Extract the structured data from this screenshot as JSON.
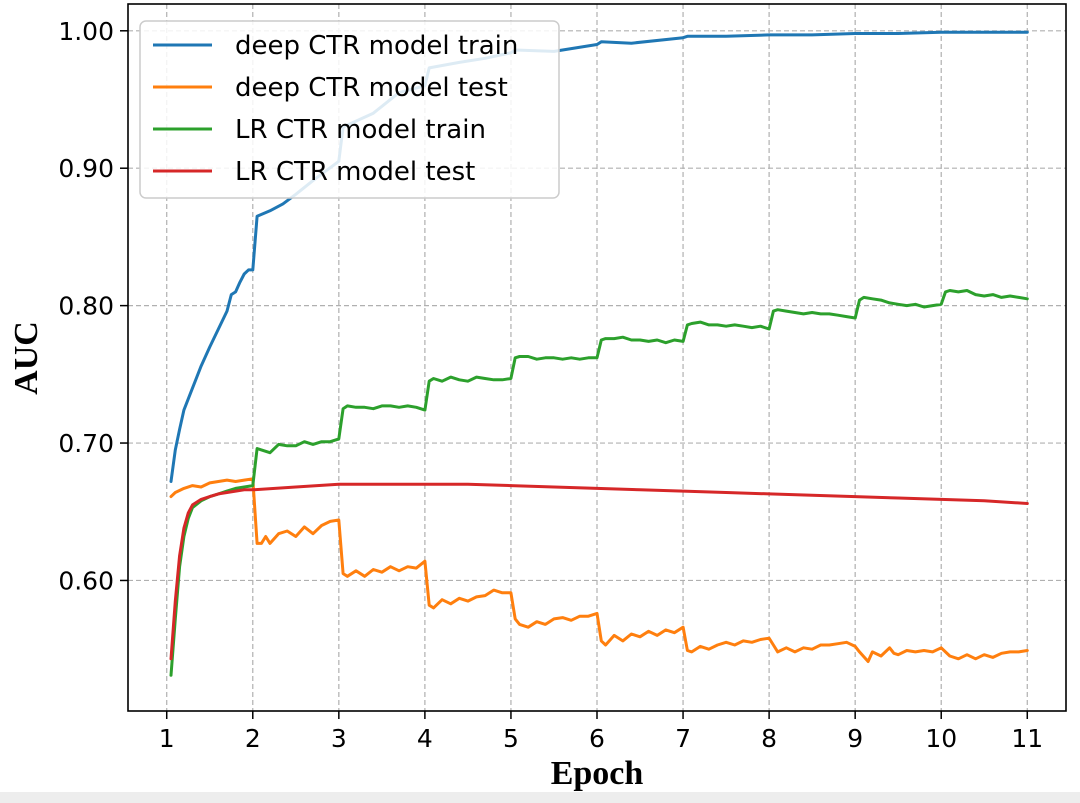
{
  "chart_data": {
    "type": "line",
    "title": "",
    "xlabel": "Epoch",
    "ylabel": "AUC",
    "xlim": [
      0.55,
      11.45
    ],
    "ylim": [
      0.505,
      1.0195
    ],
    "x_ticks": [
      1,
      2,
      3,
      4,
      5,
      6,
      7,
      8,
      9,
      10,
      11
    ],
    "x_tick_labels": [
      "1",
      "2",
      "3",
      "4",
      "5",
      "6",
      "7",
      "8",
      "9",
      "10",
      "11"
    ],
    "y_ticks": [
      0.6,
      0.7,
      0.8,
      0.9,
      1.0
    ],
    "y_tick_labels": [
      "0.60",
      "0.70",
      "0.80",
      "0.90",
      "1.00"
    ],
    "grid": true,
    "legend_position": "top-left",
    "series": [
      {
        "name": "deep CTR model train",
        "color": "#1f77b4",
        "points": [
          [
            1.05,
            0.672
          ],
          [
            1.1,
            0.695
          ],
          [
            1.15,
            0.71
          ],
          [
            1.2,
            0.724
          ],
          [
            1.3,
            0.74
          ],
          [
            1.4,
            0.756
          ],
          [
            1.5,
            0.77
          ],
          [
            1.6,
            0.783
          ],
          [
            1.7,
            0.796
          ],
          [
            1.75,
            0.808
          ],
          [
            1.8,
            0.81
          ],
          [
            1.85,
            0.817
          ],
          [
            1.9,
            0.823
          ],
          [
            1.95,
            0.826
          ],
          [
            2.0,
            0.826
          ],
          [
            2.05,
            0.865
          ],
          [
            2.2,
            0.869
          ],
          [
            2.35,
            0.874
          ],
          [
            2.5,
            0.881
          ],
          [
            2.7,
            0.891
          ],
          [
            3.0,
            0.905
          ],
          [
            3.05,
            0.93
          ],
          [
            3.4,
            0.94
          ],
          [
            3.7,
            0.955
          ],
          [
            4.0,
            0.96
          ],
          [
            4.05,
            0.973
          ],
          [
            4.4,
            0.977
          ],
          [
            4.7,
            0.98
          ],
          [
            5.0,
            0.984
          ],
          [
            5.05,
            0.986
          ],
          [
            5.5,
            0.985
          ],
          [
            6.0,
            0.99
          ],
          [
            6.05,
            0.992
          ],
          [
            6.4,
            0.991
          ],
          [
            7.0,
            0.995
          ],
          [
            7.05,
            0.996
          ],
          [
            7.5,
            0.996
          ],
          [
            8.0,
            0.997
          ],
          [
            8.5,
            0.997
          ],
          [
            9.0,
            0.998
          ],
          [
            9.5,
            0.998
          ],
          [
            10.0,
            0.999
          ],
          [
            10.5,
            0.999
          ],
          [
            11.0,
            0.999
          ]
        ]
      },
      {
        "name": "deep CTR model test",
        "color": "#ff7f0e",
        "points": [
          [
            1.05,
            0.661
          ],
          [
            1.1,
            0.664
          ],
          [
            1.2,
            0.667
          ],
          [
            1.3,
            0.669
          ],
          [
            1.4,
            0.668
          ],
          [
            1.5,
            0.671
          ],
          [
            1.6,
            0.672
          ],
          [
            1.7,
            0.673
          ],
          [
            1.8,
            0.672
          ],
          [
            1.9,
            0.673
          ],
          [
            2.0,
            0.674
          ],
          [
            2.05,
            0.627
          ],
          [
            2.1,
            0.627
          ],
          [
            2.15,
            0.632
          ],
          [
            2.2,
            0.627
          ],
          [
            2.3,
            0.634
          ],
          [
            2.4,
            0.636
          ],
          [
            2.5,
            0.632
          ],
          [
            2.6,
            0.639
          ],
          [
            2.7,
            0.634
          ],
          [
            2.8,
            0.64
          ],
          [
            2.9,
            0.643
          ],
          [
            3.0,
            0.644
          ],
          [
            3.05,
            0.605
          ],
          [
            3.1,
            0.603
          ],
          [
            3.2,
            0.607
          ],
          [
            3.3,
            0.603
          ],
          [
            3.4,
            0.608
          ],
          [
            3.5,
            0.606
          ],
          [
            3.6,
            0.61
          ],
          [
            3.7,
            0.607
          ],
          [
            3.8,
            0.61
          ],
          [
            3.9,
            0.609
          ],
          [
            4.0,
            0.614
          ],
          [
            4.05,
            0.582
          ],
          [
            4.1,
            0.58
          ],
          [
            4.2,
            0.586
          ],
          [
            4.3,
            0.583
          ],
          [
            4.4,
            0.587
          ],
          [
            4.5,
            0.585
          ],
          [
            4.6,
            0.588
          ],
          [
            4.7,
            0.589
          ],
          [
            4.8,
            0.593
          ],
          [
            4.9,
            0.591
          ],
          [
            5.0,
            0.591
          ],
          [
            5.05,
            0.572
          ],
          [
            5.1,
            0.568
          ],
          [
            5.2,
            0.566
          ],
          [
            5.3,
            0.57
          ],
          [
            5.4,
            0.568
          ],
          [
            5.5,
            0.572
          ],
          [
            5.6,
            0.573
          ],
          [
            5.7,
            0.571
          ],
          [
            5.8,
            0.574
          ],
          [
            5.9,
            0.574
          ],
          [
            6.0,
            0.576
          ],
          [
            6.05,
            0.556
          ],
          [
            6.1,
            0.553
          ],
          [
            6.2,
            0.56
          ],
          [
            6.3,
            0.556
          ],
          [
            6.4,
            0.561
          ],
          [
            6.5,
            0.559
          ],
          [
            6.6,
            0.563
          ],
          [
            6.7,
            0.56
          ],
          [
            6.8,
            0.564
          ],
          [
            6.9,
            0.562
          ],
          [
            7.0,
            0.566
          ],
          [
            7.05,
            0.549
          ],
          [
            7.1,
            0.548
          ],
          [
            7.2,
            0.552
          ],
          [
            7.3,
            0.55
          ],
          [
            7.4,
            0.553
          ],
          [
            7.5,
            0.555
          ],
          [
            7.6,
            0.553
          ],
          [
            7.7,
            0.556
          ],
          [
            7.8,
            0.555
          ],
          [
            7.9,
            0.557
          ],
          [
            8.0,
            0.558
          ],
          [
            8.05,
            0.553
          ],
          [
            8.1,
            0.548
          ],
          [
            8.2,
            0.551
          ],
          [
            8.3,
            0.548
          ],
          [
            8.4,
            0.551
          ],
          [
            8.5,
            0.55
          ],
          [
            8.6,
            0.553
          ],
          [
            8.7,
            0.553
          ],
          [
            8.8,
            0.554
          ],
          [
            8.9,
            0.555
          ],
          [
            9.0,
            0.552
          ],
          [
            9.05,
            0.548
          ],
          [
            9.15,
            0.541
          ],
          [
            9.2,
            0.548
          ],
          [
            9.3,
            0.545
          ],
          [
            9.4,
            0.551
          ],
          [
            9.45,
            0.547
          ],
          [
            9.5,
            0.546
          ],
          [
            9.6,
            0.549
          ],
          [
            9.7,
            0.548
          ],
          [
            9.8,
            0.549
          ],
          [
            9.9,
            0.548
          ],
          [
            10.0,
            0.551
          ],
          [
            10.1,
            0.545
          ],
          [
            10.2,
            0.543
          ],
          [
            10.3,
            0.546
          ],
          [
            10.4,
            0.543
          ],
          [
            10.5,
            0.546
          ],
          [
            10.6,
            0.544
          ],
          [
            10.7,
            0.547
          ],
          [
            10.8,
            0.548
          ],
          [
            10.9,
            0.548
          ],
          [
            11.0,
            0.549
          ]
        ]
      },
      {
        "name": "LR CTR model train",
        "color": "#2ca02c",
        "points": [
          [
            1.05,
            0.531
          ],
          [
            1.1,
            0.572
          ],
          [
            1.15,
            0.61
          ],
          [
            1.2,
            0.632
          ],
          [
            1.25,
            0.645
          ],
          [
            1.3,
            0.653
          ],
          [
            1.4,
            0.658
          ],
          [
            1.5,
            0.661
          ],
          [
            1.6,
            0.663
          ],
          [
            1.7,
            0.665
          ],
          [
            1.8,
            0.667
          ],
          [
            1.9,
            0.668
          ],
          [
            2.0,
            0.669
          ],
          [
            2.05,
            0.696
          ],
          [
            2.1,
            0.695
          ],
          [
            2.2,
            0.693
          ],
          [
            2.3,
            0.699
          ],
          [
            2.4,
            0.698
          ],
          [
            2.5,
            0.698
          ],
          [
            2.6,
            0.701
          ],
          [
            2.7,
            0.699
          ],
          [
            2.8,
            0.701
          ],
          [
            2.9,
            0.701
          ],
          [
            3.0,
            0.703
          ],
          [
            3.05,
            0.725
          ],
          [
            3.1,
            0.727
          ],
          [
            3.2,
            0.726
          ],
          [
            3.3,
            0.726
          ],
          [
            3.4,
            0.725
          ],
          [
            3.5,
            0.727
          ],
          [
            3.6,
            0.727
          ],
          [
            3.7,
            0.726
          ],
          [
            3.8,
            0.727
          ],
          [
            3.9,
            0.726
          ],
          [
            4.0,
            0.724
          ],
          [
            4.05,
            0.745
          ],
          [
            4.1,
            0.747
          ],
          [
            4.2,
            0.745
          ],
          [
            4.3,
            0.748
          ],
          [
            4.4,
            0.746
          ],
          [
            4.5,
            0.745
          ],
          [
            4.6,
            0.748
          ],
          [
            4.7,
            0.747
          ],
          [
            4.8,
            0.746
          ],
          [
            4.9,
            0.746
          ],
          [
            5.0,
            0.747
          ],
          [
            5.05,
            0.762
          ],
          [
            5.1,
            0.763
          ],
          [
            5.2,
            0.763
          ],
          [
            5.3,
            0.761
          ],
          [
            5.4,
            0.762
          ],
          [
            5.5,
            0.762
          ],
          [
            5.6,
            0.761
          ],
          [
            5.7,
            0.762
          ],
          [
            5.8,
            0.761
          ],
          [
            5.9,
            0.762
          ],
          [
            6.0,
            0.762
          ],
          [
            6.05,
            0.775
          ],
          [
            6.1,
            0.776
          ],
          [
            6.2,
            0.776
          ],
          [
            6.3,
            0.777
          ],
          [
            6.4,
            0.775
          ],
          [
            6.5,
            0.775
          ],
          [
            6.6,
            0.774
          ],
          [
            6.7,
            0.775
          ],
          [
            6.8,
            0.773
          ],
          [
            6.9,
            0.775
          ],
          [
            7.0,
            0.774
          ],
          [
            7.05,
            0.786
          ],
          [
            7.1,
            0.787
          ],
          [
            7.2,
            0.788
          ],
          [
            7.3,
            0.786
          ],
          [
            7.4,
            0.786
          ],
          [
            7.5,
            0.785
          ],
          [
            7.6,
            0.786
          ],
          [
            7.7,
            0.785
          ],
          [
            7.8,
            0.784
          ],
          [
            7.9,
            0.785
          ],
          [
            8.0,
            0.783
          ],
          [
            8.05,
            0.796
          ],
          [
            8.1,
            0.797
          ],
          [
            8.2,
            0.796
          ],
          [
            8.3,
            0.795
          ],
          [
            8.4,
            0.794
          ],
          [
            8.5,
            0.795
          ],
          [
            8.6,
            0.794
          ],
          [
            8.7,
            0.794
          ],
          [
            8.8,
            0.793
          ],
          [
            8.9,
            0.792
          ],
          [
            9.0,
            0.791
          ],
          [
            9.05,
            0.804
          ],
          [
            9.1,
            0.806
          ],
          [
            9.2,
            0.805
          ],
          [
            9.3,
            0.804
          ],
          [
            9.4,
            0.802
          ],
          [
            9.5,
            0.801
          ],
          [
            9.6,
            0.8
          ],
          [
            9.7,
            0.801
          ],
          [
            9.8,
            0.799
          ],
          [
            9.9,
            0.8
          ],
          [
            10.0,
            0.801
          ],
          [
            10.05,
            0.81
          ],
          [
            10.1,
            0.811
          ],
          [
            10.2,
            0.81
          ],
          [
            10.3,
            0.811
          ],
          [
            10.4,
            0.808
          ],
          [
            10.5,
            0.807
          ],
          [
            10.6,
            0.808
          ],
          [
            10.7,
            0.806
          ],
          [
            10.8,
            0.807
          ],
          [
            10.9,
            0.806
          ],
          [
            11.0,
            0.805
          ]
        ]
      },
      {
        "name": "LR CTR model test",
        "color": "#d62728",
        "points": [
          [
            1.05,
            0.543
          ],
          [
            1.1,
            0.585
          ],
          [
            1.15,
            0.618
          ],
          [
            1.2,
            0.638
          ],
          [
            1.25,
            0.649
          ],
          [
            1.3,
            0.655
          ],
          [
            1.4,
            0.659
          ],
          [
            1.5,
            0.661
          ],
          [
            1.6,
            0.663
          ],
          [
            1.7,
            0.664
          ],
          [
            1.8,
            0.665
          ],
          [
            1.9,
            0.666
          ],
          [
            2.0,
            0.666
          ],
          [
            2.5,
            0.668
          ],
          [
            3.0,
            0.67
          ],
          [
            3.5,
            0.67
          ],
          [
            4.0,
            0.67
          ],
          [
            4.5,
            0.67
          ],
          [
            5.0,
            0.669
          ],
          [
            5.5,
            0.668
          ],
          [
            6.0,
            0.667
          ],
          [
            6.5,
            0.666
          ],
          [
            7.0,
            0.665
          ],
          [
            7.5,
            0.664
          ],
          [
            8.0,
            0.663
          ],
          [
            8.5,
            0.662
          ],
          [
            9.0,
            0.661
          ],
          [
            9.5,
            0.66
          ],
          [
            10.0,
            0.659
          ],
          [
            10.5,
            0.658
          ],
          [
            11.0,
            0.656
          ]
        ]
      }
    ]
  }
}
